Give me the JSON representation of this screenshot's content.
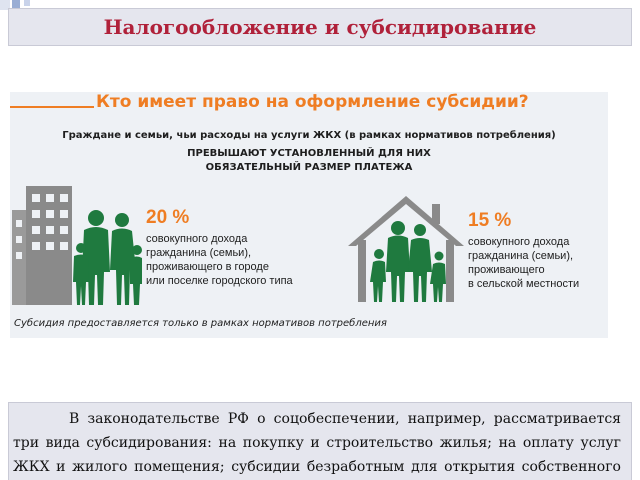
{
  "header": {
    "title": "Налогообложение и субсидирование"
  },
  "infographic": {
    "title": "Кто имеет право на оформление субсидии?",
    "subtitle_line1": "Граждане и семьи, чьи расходы на услуги ЖКХ (в рамках нормативов потребления)",
    "subtitle_line2": "ПРЕВЫШАЮТ УСТАНОВЛЕННЫЙ ДЛЯ НИХ",
    "subtitle_line3": "ОБЯЗАТЕЛЬНЫЙ РАЗМЕР ПЛАТЕЖА",
    "urban": {
      "percent": "20 %",
      "lines": [
        "совокупного дохода",
        "гражданина (семьи),",
        "проживающего в городе",
        "или поселке городского типа"
      ]
    },
    "rural": {
      "percent": "15 %",
      "lines": [
        "совокупного дохода",
        "гражданина (семьи),",
        "проживающего",
        "в сельской местности"
      ]
    },
    "footnote": "Субсидия предоставляется только в рамках нормативов потребления",
    "colors": {
      "accent": "#ef7d23",
      "figures": "#1f7a3f",
      "buildings": "#8a8a8a"
    }
  },
  "body_text": "В законодательстве РФ о соцобеспечении, например, рассматривается три вида субсидирования: на покупку и строительство жилья; на оплату услуг ЖКХ и жилого помещения; субсидии безработным для открытия собственного бизнеса."
}
